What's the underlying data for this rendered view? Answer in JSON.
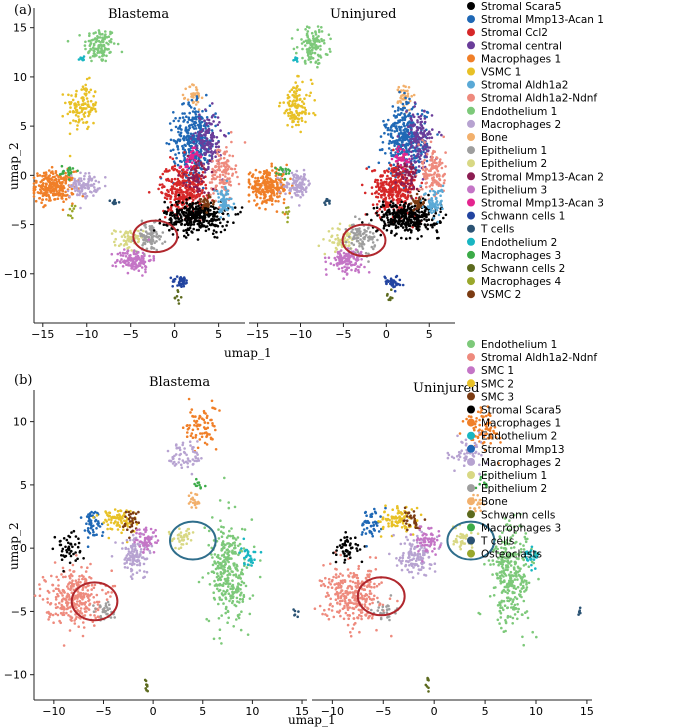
{
  "chart_data": [
    {
      "type": "scatter",
      "panel_label": "(a)",
      "titles": [
        "Blastema",
        "Uninjured"
      ],
      "xlabel": "umap_1",
      "ylabel": "umap_2",
      "xlim": [
        -16,
        8
      ],
      "ylim": [
        -15,
        17
      ],
      "xticks": [
        -15,
        -10,
        -5,
        0,
        5
      ],
      "yticks": [
        15,
        10,
        5,
        0,
        -5,
        -10
      ],
      "legend_position": "right",
      "legend": [
        {
          "name": "Stromal Scara5",
          "color": "#000000"
        },
        {
          "name": "Stromal Mmp13-Acan 1",
          "color": "#1f68b5"
        },
        {
          "name": "Stromal Ccl2",
          "color": "#d62728"
        },
        {
          "name": "Stromal central",
          "color": "#6a3d9a"
        },
        {
          "name": "Macrophages 1",
          "color": "#f07f28"
        },
        {
          "name": "VSMC 1",
          "color": "#e8c126"
        },
        {
          "name": "Stromal Aldh1a2",
          "color": "#5aa9d6"
        },
        {
          "name": "Stromal Aldh1a2-Ndnf",
          "color": "#ee8a7d"
        },
        {
          "name": "Endothelium 1",
          "color": "#7dc97a"
        },
        {
          "name": "Macrophages 2",
          "color": "#b7a3d1"
        },
        {
          "name": "Bone",
          "color": "#f2b06c"
        },
        {
          "name": "Epithelium 1",
          "color": "#9e9e9e"
        },
        {
          "name": "Epithelium 2",
          "color": "#d8d884"
        },
        {
          "name": "Stromal Mmp13-Acan 2",
          "color": "#8c1d52"
        },
        {
          "name": "Epithelium 3",
          "color": "#c475c6"
        },
        {
          "name": "Stromal Mmp13-Acan 3",
          "color": "#e4258f"
        },
        {
          "name": "Schwann cells 1",
          "color": "#2244a0"
        },
        {
          "name": "T cells",
          "color": "#2a5273"
        },
        {
          "name": "Endothelium 2",
          "color": "#19b6c2"
        },
        {
          "name": "Macrophages 3",
          "color": "#3cab48"
        },
        {
          "name": "Schwann cells 2",
          "color": "#5c6a1e"
        },
        {
          "name": "Macrophages 4",
          "color": "#9aa82c"
        },
        {
          "name": "VSMC 2",
          "color": "#7b3b12"
        }
      ],
      "clusters": [
        {
          "name": "Endothelium 1",
          "cx": -8.5,
          "cy": 13.2,
          "sx": 0.9,
          "sy": 0.9,
          "n": 120
        },
        {
          "name": "Endothelium 2",
          "cx": -10.6,
          "cy": 11.8,
          "sx": 0.2,
          "sy": 0.2,
          "n": 8
        },
        {
          "name": "VSMC 1",
          "cx": -10.5,
          "cy": 7.0,
          "sx": 0.9,
          "sy": 1.2,
          "n": 120
        },
        {
          "name": "Macrophages 1",
          "cx": -13.8,
          "cy": -1.2,
          "sx": 1.2,
          "sy": 0.8,
          "n": 260
        },
        {
          "name": "Macrophages 3",
          "cx": -12.0,
          "cy": 0.4,
          "sx": 0.5,
          "sy": 0.3,
          "n": 20
        },
        {
          "name": "Macrophages 2",
          "cx": -10.3,
          "cy": -1.0,
          "sx": 0.8,
          "sy": 0.6,
          "n": 100
        },
        {
          "name": "Macrophages 4",
          "cx": -11.6,
          "cy": -3.7,
          "sx": 0.2,
          "sy": 0.4,
          "n": 8
        },
        {
          "name": "T cells",
          "cx": -6.9,
          "cy": -2.7,
          "sx": 0.2,
          "sy": 0.2,
          "n": 10
        },
        {
          "name": "Epithelium 2",
          "cx": -5.2,
          "cy": -6.6,
          "sx": 0.8,
          "sy": 0.6,
          "n": 60
        },
        {
          "name": "Epithelium 1",
          "cx": -2.9,
          "cy": -6.3,
          "sx": 0.8,
          "sy": 0.7,
          "n": 90
        },
        {
          "name": "Epithelium 3",
          "cx": -4.6,
          "cy": -8.6,
          "sx": 1.0,
          "sy": 0.6,
          "n": 120
        },
        {
          "name": "Schwann cells 1",
          "cx": 0.7,
          "cy": -10.8,
          "sx": 0.5,
          "sy": 0.3,
          "n": 40
        },
        {
          "name": "Schwann cells 2",
          "cx": 0.3,
          "cy": -12.3,
          "sx": 0.2,
          "sy": 0.4,
          "n": 8
        },
        {
          "name": "Bone",
          "cx": 2.2,
          "cy": 8.0,
          "sx": 0.4,
          "sy": 0.7,
          "n": 40
        },
        {
          "name": "Stromal Mmp13-Acan 1",
          "cx": 2.3,
          "cy": 3.5,
          "sx": 1.2,
          "sy": 1.8,
          "n": 380
        },
        {
          "name": "Stromal central",
          "cx": 3.8,
          "cy": 3.6,
          "sx": 0.8,
          "sy": 1.4,
          "n": 140
        },
        {
          "name": "Stromal Ccl2",
          "cx": 1.0,
          "cy": -1.4,
          "sx": 1.3,
          "sy": 1.3,
          "n": 320
        },
        {
          "name": "Stromal Scara5",
          "cx": 2.5,
          "cy": -4.2,
          "sx": 1.8,
          "sy": 0.8,
          "n": 360
        },
        {
          "name": "Stromal Aldh1a2-Ndnf",
          "cx": 5.5,
          "cy": 0.3,
          "sx": 0.7,
          "sy": 1.4,
          "n": 130
        },
        {
          "name": "Stromal Aldh1a2",
          "cx": 5.6,
          "cy": -2.8,
          "sx": 0.5,
          "sy": 0.8,
          "n": 70
        },
        {
          "name": "Stromal Mmp13-Acan 2",
          "cx": 2.6,
          "cy": -0.2,
          "sx": 0.7,
          "sy": 0.9,
          "n": 60
        },
        {
          "name": "Stromal Mmp13-Acan 3",
          "cx": 1.8,
          "cy": 1.8,
          "sx": 0.4,
          "sy": 0.6,
          "n": 30
        },
        {
          "name": "VSMC 2",
          "cx": 3.6,
          "cy": -2.8,
          "sx": 0.5,
          "sy": 0.4,
          "n": 30
        }
      ],
      "highlight_circles": [
        {
          "panel": 0,
          "cx": -2.2,
          "cy": -6.2,
          "rx": 2.5,
          "ry": 1.6,
          "color": "#b0272d"
        },
        {
          "panel": 1,
          "cx": -2.6,
          "cy": -6.6,
          "rx": 2.5,
          "ry": 1.6,
          "color": "#b0272d"
        }
      ]
    },
    {
      "type": "scatter",
      "panel_label": "(b)",
      "titles": [
        "Blastema",
        "Uninjured"
      ],
      "xlabel": "umap_1",
      "ylabel": "umap_2",
      "xlim": [
        -12,
        15.5
      ],
      "ylim": [
        -12,
        12.5
      ],
      "xticks": [
        -10,
        -5,
        0,
        5,
        10,
        15
      ],
      "yticks": [
        10,
        5,
        0,
        -5,
        -10
      ],
      "legend_position": "right",
      "legend": [
        {
          "name": "Endothelium 1",
          "color": "#7dc97a"
        },
        {
          "name": "Stromal Aldh1a2-Ndnf",
          "color": "#ee8a7d"
        },
        {
          "name": "SMC 1",
          "color": "#c475c6"
        },
        {
          "name": "SMC 2",
          "color": "#e8c126"
        },
        {
          "name": "SMC 3",
          "color": "#7b3b12"
        },
        {
          "name": "Stromal Scara5",
          "color": "#000000"
        },
        {
          "name": "Macrophages 1",
          "color": "#f07f28"
        },
        {
          "name": "Endothelium 2",
          "color": "#19b6c2"
        },
        {
          "name": "Stromal Mmp13",
          "color": "#1f68b5"
        },
        {
          "name": "Macrophages 2",
          "color": "#b7a3d1"
        },
        {
          "name": "Epithelium 1",
          "color": "#d8d884"
        },
        {
          "name": "Epithelium 2",
          "color": "#9e9e9e"
        },
        {
          "name": "Bone",
          "color": "#f2b06c"
        },
        {
          "name": "Schwann cells",
          "color": "#5c6a1e"
        },
        {
          "name": "Macrophages 3",
          "color": "#3cab48"
        },
        {
          "name": "T cells",
          "color": "#2a5273"
        },
        {
          "name": "Osteoclasts",
          "color": "#9aa82c"
        }
      ],
      "clusters": [
        {
          "name": "Stromal Aldh1a2-Ndnf",
          "cx": -8.0,
          "cy": -3.8,
          "sx": 1.4,
          "sy": 1.1,
          "n": 300
        },
        {
          "name": "Stromal Scara5",
          "cx": -8.5,
          "cy": 0.0,
          "sx": 0.7,
          "sy": 0.6,
          "n": 50
        },
        {
          "name": "Stromal Mmp13",
          "cx": -6.2,
          "cy": 2.0,
          "sx": 0.5,
          "sy": 0.6,
          "n": 50
        },
        {
          "name": "SMC 2",
          "cx": -3.5,
          "cy": 2.2,
          "sx": 0.9,
          "sy": 0.5,
          "n": 90
        },
        {
          "name": "SMC 3",
          "cx": -2.2,
          "cy": 2.2,
          "sx": 0.4,
          "sy": 0.5,
          "n": 30
        },
        {
          "name": "Macrophages 2",
          "cx": -1.8,
          "cy": -0.5,
          "sx": 0.8,
          "sy": 0.8,
          "n": 120
        },
        {
          "name": "SMC 1",
          "cx": -0.6,
          "cy": 0.6,
          "sx": 0.6,
          "sy": 0.5,
          "n": 60
        },
        {
          "name": "Epithelium 2",
          "cx": -4.8,
          "cy": -5.0,
          "sx": 0.6,
          "sy": 0.4,
          "n": 30
        },
        {
          "name": "Epithelium 1",
          "cx": 2.8,
          "cy": 0.8,
          "sx": 0.6,
          "sy": 0.4,
          "n": 40
        },
        {
          "name": "Macrophages 1",
          "cx": 4.8,
          "cy": 9.5,
          "sx": 0.8,
          "sy": 0.9,
          "n": 80
        },
        {
          "name": "Macrophages 2",
          "cx": 3.4,
          "cy": 7.4,
          "sx": 0.9,
          "sy": 0.7,
          "n": 60
        },
        {
          "name": "Bone",
          "cx": 4.2,
          "cy": 3.6,
          "sx": 0.4,
          "sy": 0.4,
          "n": 20
        },
        {
          "name": "Macrophages 3",
          "cx": 4.8,
          "cy": 5.0,
          "sx": 0.3,
          "sy": 0.3,
          "n": 10
        },
        {
          "name": "Endothelium 1",
          "cx": 7.6,
          "cy": -2.0,
          "sx": 1.0,
          "sy": 2.0,
          "n": 320
        },
        {
          "name": "Endothelium 2",
          "cx": 9.6,
          "cy": -0.6,
          "sx": 0.4,
          "sy": 0.4,
          "n": 30
        },
        {
          "name": "T cells",
          "cx": 14.3,
          "cy": -5.0,
          "sx": 0.1,
          "sy": 0.2,
          "n": 6
        },
        {
          "name": "Schwann cells",
          "cx": -0.6,
          "cy": -10.8,
          "sx": 0.1,
          "sy": 0.3,
          "n": 8
        }
      ],
      "highlight_circles": [
        {
          "panel": 0,
          "cx": -5.9,
          "cy": -4.2,
          "rx": 2.3,
          "ry": 1.5,
          "color": "#b0272d"
        },
        {
          "panel": 0,
          "cx": 4.0,
          "cy": 0.6,
          "rx": 2.3,
          "ry": 1.5,
          "color": "#2f6e8c"
        },
        {
          "panel": 1,
          "cx": -5.2,
          "cy": -3.8,
          "rx": 2.3,
          "ry": 1.5,
          "color": "#b0272d"
        },
        {
          "panel": 1,
          "cx": 3.6,
          "cy": 0.6,
          "rx": 2.3,
          "ry": 1.5,
          "color": "#2f6e8c"
        }
      ]
    }
  ]
}
